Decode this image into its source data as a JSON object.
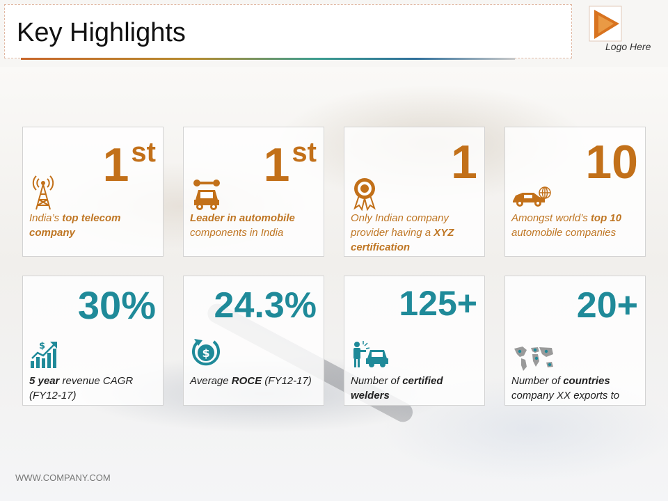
{
  "header": {
    "title": "Key Highlights",
    "logo_text": "Logo Here"
  },
  "colors": {
    "orange": "#c27019",
    "teal": "#1f8a99"
  },
  "cards": [
    {
      "stat": "1",
      "stat_sup": "st",
      "icon": "antenna-tower-icon",
      "d1": "India’s ",
      "d2": "top telecom company",
      "d3": ""
    },
    {
      "stat": "1",
      "stat_sup": "st",
      "icon": "car-wrench-icon",
      "d1": "",
      "d2": "Leader in automobile",
      "d3": " components in India"
    },
    {
      "stat": "1",
      "icon": "award-ribbon-icon",
      "d1": "Only Indian company provider having a ",
      "d2": "XYZ certification",
      "d3": ""
    },
    {
      "stat": "10",
      "icon": "car-globe-icon",
      "d1": "Amongst world’s ",
      "d2": "top 10",
      "d3": " automobile companies"
    },
    {
      "stat": "30%",
      "icon": "dollar-growth-chart-icon",
      "d1": "",
      "d2": "5 year",
      "d3": " revenue CAGR (FY12-17)"
    },
    {
      "stat": "24.3%",
      "icon": "dollar-cycle-icon",
      "d1": "Average ",
      "d2": "ROCE",
      "d3": " (FY12-17)"
    },
    {
      "stat": "125+",
      "icon": "welder-car-icon",
      "d1": "Number of ",
      "d2": "certified welders",
      "d3": ""
    },
    {
      "stat": "20+",
      "icon": "world-map-icon",
      "d1": "Number of ",
      "d2": "countries",
      "d3": " company XX exports to"
    }
  ],
  "footer": {
    "url": "WWW.COMPANY.COM"
  }
}
